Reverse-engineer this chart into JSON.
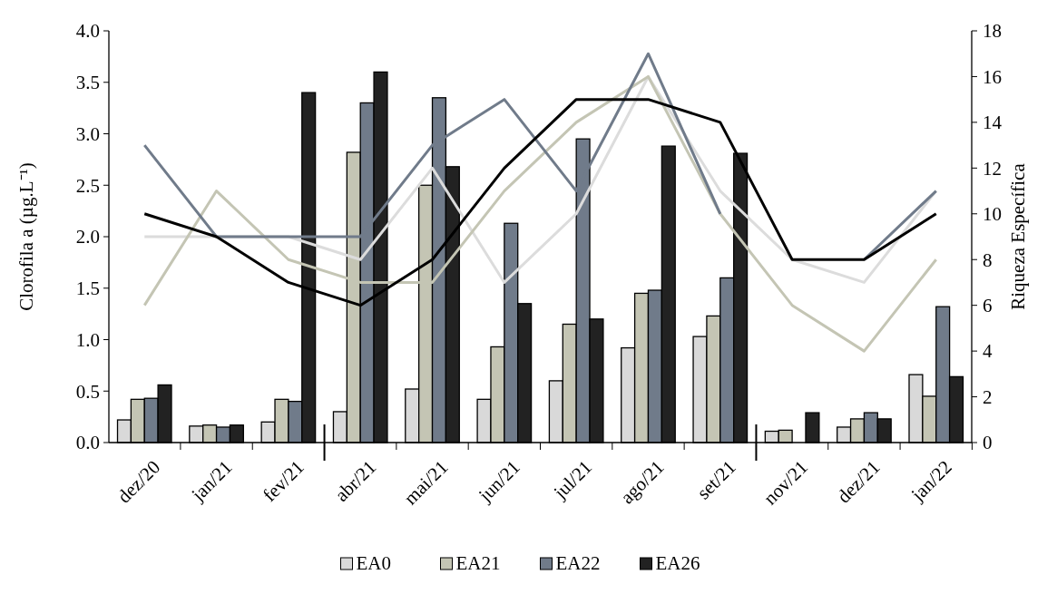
{
  "chart_data": {
    "type": "bar",
    "categories": [
      "dez/20",
      "jan/21",
      "fev/21",
      "abr/21",
      "mai/21",
      "jun/21",
      "jul/21",
      "ago/21",
      "set/21",
      "nov/21",
      "dez/21",
      "jan/22"
    ],
    "ylabel": "Clorofila a (µg.L⁻¹)",
    "y2label": "Riqueza Específica",
    "ylim": [
      0,
      4
    ],
    "yticks": [
      {
        "value": 0,
        "label": "0.0"
      },
      {
        "value": 0.5,
        "label": "0.5"
      },
      {
        "value": 1,
        "label": "1.0"
      },
      {
        "value": 1.5,
        "label": "1.5"
      },
      {
        "value": 2,
        "label": "2.0"
      },
      {
        "value": 2.5,
        "label": "2.5"
      },
      {
        "value": 3,
        "label": "3.0"
      },
      {
        "value": 3.5,
        "label": "3.5"
      },
      {
        "value": 4,
        "label": "4.0"
      }
    ],
    "y2lim": [
      0,
      18
    ],
    "y2ticks": [
      0,
      2,
      4,
      6,
      8,
      10,
      12,
      14,
      16,
      18
    ],
    "grid": false,
    "legend": "bottom",
    "series": [
      {
        "name": "EA0",
        "color": "#d9d9d9",
        "values": [
          0.22,
          0.16,
          0.2,
          0.3,
          0.52,
          0.42,
          0.6,
          0.92,
          1.03,
          0.11,
          0.15,
          0.66
        ]
      },
      {
        "name": "EA21",
        "color": "#c4c5b4",
        "values": [
          0.42,
          0.17,
          0.42,
          2.82,
          2.5,
          0.93,
          1.15,
          1.45,
          1.23,
          0.12,
          0.23,
          0.45
        ]
      },
      {
        "name": "EA22",
        "color": "#707b8a",
        "values": [
          0.43,
          0.15,
          0.4,
          3.3,
          3.35,
          2.13,
          2.95,
          1.48,
          1.6,
          null,
          0.29,
          1.32
        ]
      },
      {
        "name": "EA26",
        "color": "#222222",
        "values": [
          0.56,
          0.17,
          3.4,
          3.6,
          2.68,
          1.35,
          1.2,
          2.88,
          2.81,
          0.29,
          0.23,
          0.64
        ]
      },
      {
        "type": "line",
        "axis": "y2",
        "color": "#dcdcdc",
        "values": [
          9,
          9,
          9,
          8,
          12,
          7,
          10,
          16,
          11,
          8,
          7,
          11
        ]
      },
      {
        "type": "line",
        "axis": "y2",
        "color": "#c4c5b4",
        "values": [
          6,
          11,
          8,
          7,
          7,
          11,
          14,
          16,
          10,
          6,
          4,
          8
        ]
      },
      {
        "type": "line",
        "axis": "y2",
        "color": "#707b8a",
        "values": [
          13,
          9,
          9,
          9,
          13,
          15,
          11,
          17,
          10,
          null,
          8,
          11
        ]
      },
      {
        "type": "line",
        "axis": "y2",
        "color": "#000000",
        "values": [
          10,
          9,
          7,
          6,
          8,
          12,
          15,
          15,
          14,
          8,
          8,
          10
        ]
      }
    ]
  }
}
